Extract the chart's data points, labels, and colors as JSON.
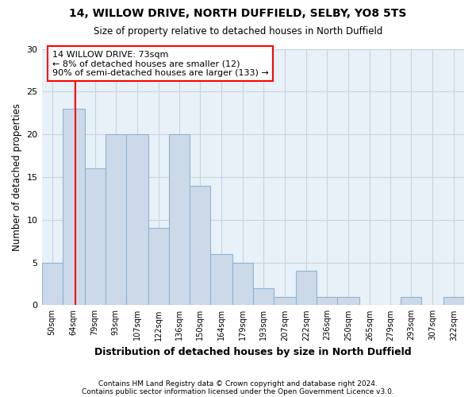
{
  "title1": "14, WILLOW DRIVE, NORTH DUFFIELD, SELBY, YO8 5TS",
  "title2": "Size of property relative to detached houses in North Duffield",
  "xlabel": "Distribution of detached houses by size in North Duffield",
  "ylabel": "Number of detached properties",
  "footer1": "Contains HM Land Registry data © Crown copyright and database right 2024.",
  "footer2": "Contains public sector information licensed under the Open Government Licence v3.0.",
  "annotation_line1": "14 WILLOW DRIVE: 73sqm",
  "annotation_line2": "← 8% of detached houses are smaller (12)",
  "annotation_line3": "90% of semi-detached houses are larger (133) →",
  "bar_edges": [
    50,
    64,
    79,
    93,
    107,
    122,
    136,
    150,
    164,
    179,
    193,
    207,
    222,
    236,
    250,
    265,
    279,
    293,
    307,
    322,
    336
  ],
  "bar_heights": [
    5,
    23,
    16,
    20,
    20,
    9,
    20,
    14,
    6,
    5,
    2,
    1,
    4,
    1,
    1,
    0,
    0,
    1,
    0,
    1
  ],
  "bar_color": "#ccd9e8",
  "bar_edge_color": "#8eb4d4",
  "red_line_x": 73,
  "ylim": [
    0,
    30
  ],
  "yticks": [
    0,
    5,
    10,
    15,
    20,
    25,
    30
  ],
  "grid_color": "#c8d4e0",
  "facecolor": "#e8f0f8"
}
